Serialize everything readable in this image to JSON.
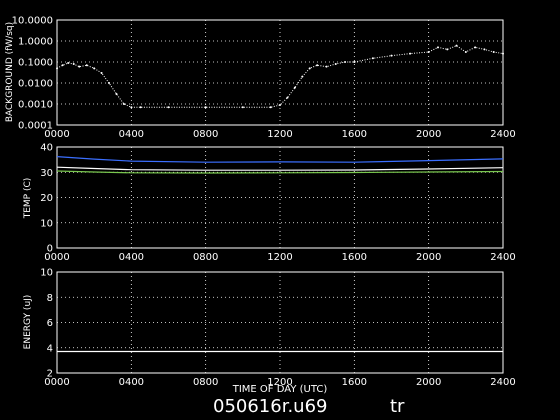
{
  "footer": {
    "filename": "050616r.u69",
    "tag": "tr"
  },
  "xlabel": "TIME OF DAY (UTC)",
  "chart_data": [
    {
      "type": "scatter",
      "scale": "log",
      "ylabel": "BACKGROUND (fW/sq)",
      "ylim": [
        0.0001,
        10
      ],
      "yticks": [
        "10.0000",
        "1.0000",
        "0.1000",
        "0.0100",
        "0.0010",
        "0.0001"
      ],
      "xticks": [
        "0000",
        "0400",
        "0800",
        "1200",
        "1600",
        "2000",
        "2400"
      ],
      "xlim": [
        0,
        24
      ],
      "grid": true,
      "series": [
        {
          "color": "#ffffff",
          "x": [
            0.0,
            0.3,
            0.6,
            0.9,
            1.2,
            1.6,
            2.0,
            2.4,
            2.8,
            3.2,
            3.6,
            4.0,
            4.5,
            6.0,
            8.0,
            10.0,
            11.5,
            12.0,
            12.4,
            12.8,
            13.2,
            13.6,
            14.0,
            14.5,
            15.0,
            15.5,
            16.0,
            17.0,
            18.0,
            19.0,
            20.0,
            20.5,
            21.0,
            21.5,
            22.0,
            22.5,
            23.0,
            23.5,
            24.0
          ],
          "y": [
            0.05,
            0.07,
            0.09,
            0.08,
            0.06,
            0.07,
            0.05,
            0.03,
            0.01,
            0.003,
            0.001,
            0.0007,
            0.0007,
            0.0007,
            0.0007,
            0.0007,
            0.0007,
            0.0009,
            0.002,
            0.006,
            0.02,
            0.05,
            0.07,
            0.06,
            0.08,
            0.1,
            0.1,
            0.15,
            0.2,
            0.25,
            0.3,
            0.5,
            0.4,
            0.6,
            0.3,
            0.5,
            0.4,
            0.3,
            0.25
          ]
        }
      ]
    },
    {
      "type": "line",
      "ylabel": "TEMP (C)",
      "ylim": [
        0,
        40
      ],
      "yticks": [
        "40",
        "30",
        "20",
        "10",
        "0"
      ],
      "yvalues": [
        40,
        30,
        20,
        10,
        0
      ],
      "xticks": [
        "0000",
        "0400",
        "0800",
        "1200",
        "1600",
        "2000",
        "2400"
      ],
      "xlim": [
        0,
        24
      ],
      "grid": true,
      "series": [
        {
          "color": "#3b6fff",
          "x": [
            0,
            2,
            4,
            8,
            12,
            16,
            20,
            24
          ],
          "y": [
            36.2,
            35.2,
            34.4,
            34.0,
            34.1,
            34.0,
            34.6,
            35.3
          ]
        },
        {
          "color": "#ffffff",
          "x": [
            0,
            2,
            4,
            8,
            12,
            16,
            20,
            24
          ],
          "y": [
            32.0,
            31.5,
            31.0,
            30.8,
            30.8,
            30.9,
            31.3,
            31.8
          ]
        },
        {
          "color": "#7ac74f",
          "x": [
            0,
            2,
            4,
            8,
            12,
            16,
            20,
            24
          ],
          "y": [
            30.5,
            30.1,
            29.8,
            29.7,
            29.8,
            29.9,
            30.1,
            30.3
          ]
        }
      ]
    },
    {
      "type": "line",
      "ylabel": "ENERGY (uJ)",
      "ylim": [
        2,
        10
      ],
      "yticks": [
        "10",
        "8",
        "6",
        "4",
        "2"
      ],
      "yvalues": [
        10,
        8,
        6,
        4,
        2
      ],
      "xticks": [
        "0000",
        "0400",
        "0800",
        "1200",
        "1600",
        "2000",
        "2400"
      ],
      "xlim": [
        0,
        24
      ],
      "grid": true,
      "series": [
        {
          "color": "#ffffff",
          "x": [
            0,
            4,
            8,
            12,
            16,
            20,
            24
          ],
          "y": [
            3.7,
            3.7,
            3.7,
            3.7,
            3.7,
            3.7,
            3.7
          ]
        }
      ]
    }
  ]
}
